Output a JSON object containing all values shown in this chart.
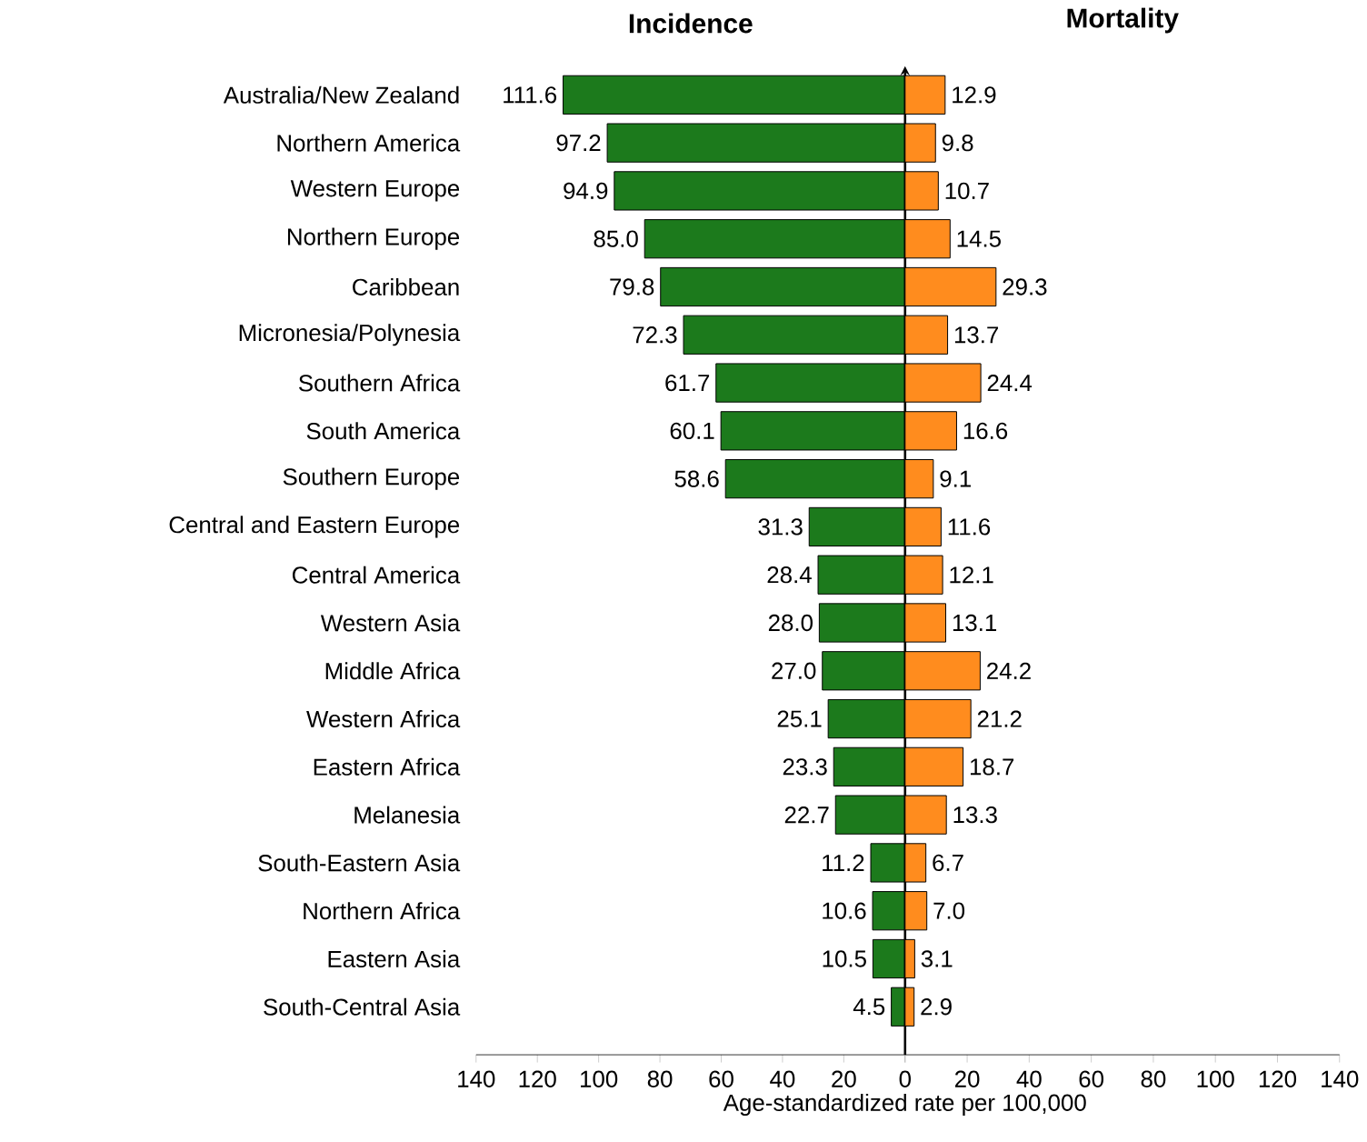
{
  "chart_data": [
    {
      "type": "bar",
      "orientation": "horizontal",
      "title": "Incidence",
      "color": "#1c7a1c",
      "xlabel": "Age-standardized rate per 100,000",
      "categories": [
        "Australia/New Zealand",
        "Northern America",
        "Western Europe",
        "Northern Europe",
        "Caribbean",
        "Micronesia/Polynesia",
        "Southern Africa",
        "South America",
        "Southern Europe",
        "Central and Eastern Europe",
        "Central America",
        "Western Asia",
        "Middle Africa",
        "Western Africa",
        "Eastern Africa",
        "Melanesia",
        "South-Eastern Asia",
        "Northern Africa",
        "Eastern Asia",
        "South-Central Asia"
      ],
      "xlim": [
        140,
        0
      ],
      "xticks": [
        140,
        120,
        100,
        80,
        60,
        40,
        20,
        {
          "value": 0,
          "label": null
        }
      ],
      "values": [
        111.6,
        97.2,
        94.9,
        85.0,
        79.8,
        72.3,
        61.7,
        60.1,
        58.6,
        31.3,
        28.4,
        28.0,
        27.0,
        25.1,
        23.3,
        22.7,
        11.2,
        10.6,
        10.5,
        4.5
      ],
      "value_labels": [
        "111.6",
        "97.2",
        "94.9",
        "85.0",
        "79.8",
        "72.3",
        "61.7",
        "60.1",
        "58.6",
        "31.3",
        "28.4",
        "28.0",
        "27.0",
        "25.1",
        "23.3",
        "22.7",
        "11.2",
        "10.6",
        "10.5",
        "4.5"
      ]
    },
    {
      "type": "bar",
      "orientation": "horizontal",
      "title": "Mortality",
      "color": "#ff8c1e",
      "tick_labels": "x",
      "categories": [
        null,
        null,
        null,
        null,
        null,
        null,
        null,
        null,
        null,
        null,
        null,
        null,
        null,
        null,
        null,
        null,
        null,
        null,
        null,
        null
      ],
      "xlim": [
        0,
        140
      ],
      "xticks": [
        0,
        20,
        40,
        60,
        80,
        100,
        120,
        140
      ],
      "values": [
        12.9,
        9.8,
        10.7,
        14.5,
        29.3,
        13.7,
        24.4,
        16.6,
        9.1,
        11.6,
        12.1,
        13.1,
        24.2,
        21.2,
        18.7,
        13.3,
        6.7,
        7.0,
        3.1,
        2.9
      ],
      "value_labels": [
        "12.9",
        "9.8",
        "10.7",
        "14.5",
        "29.3",
        "13.7",
        "24.4",
        "16.6",
        "9.1",
        "11.6",
        "12.1",
        "13.1",
        "24.2",
        "21.2",
        "18.7",
        "13.3",
        "6.7",
        "7.0",
        "3.1",
        "2.9"
      ]
    }
  ]
}
